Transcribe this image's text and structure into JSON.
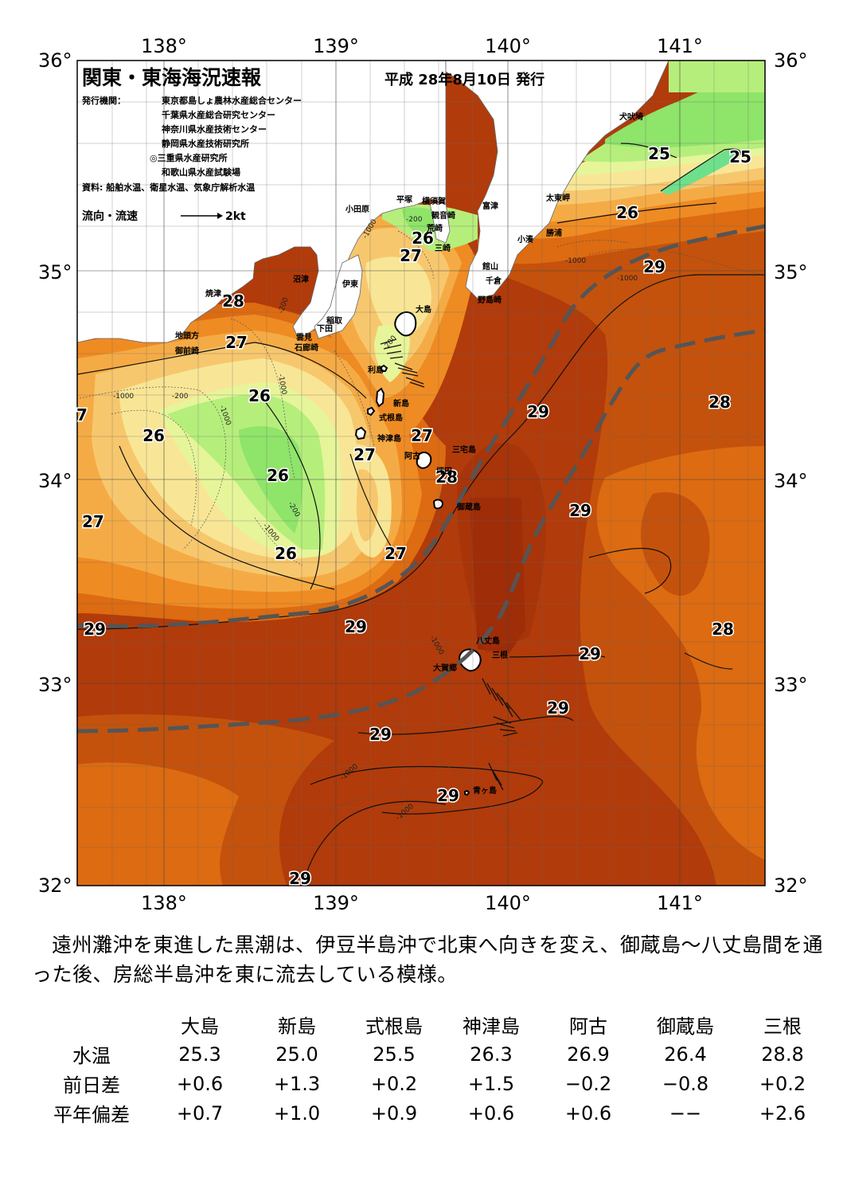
{
  "header": {
    "title": "関東・東海海況速報",
    "date": "平成 28年8月10日 発行",
    "publisher_label": "発行機関：",
    "publishers": [
      "東京都島しょ農林水産総合センター",
      "千葉県水産総合研究センター",
      "神奈川県水産技術センター",
      "静岡県水産技術研究所",
      "◎三重県水産研究所",
      "和歌山県水産試験場"
    ],
    "source": "資料: 船舶水温、衛星水温、気象庁解析水温",
    "legend_flow_label": "流向・流速",
    "legend_flow_scale": "2kt"
  },
  "map": {
    "lon_labels": [
      "138°",
      "139°",
      "140°",
      "141°"
    ],
    "lat_labels": [
      "36°",
      "35°",
      "34°",
      "33°",
      "32°"
    ],
    "lon_range": [
      137.5,
      141.5
    ],
    "lat_range": [
      32.0,
      36.0
    ],
    "temperature_labels": [
      "25",
      "25",
      "26",
      "29",
      "26",
      "27",
      "28",
      "27",
      "26",
      "26",
      "27",
      "27",
      "26",
      "27",
      "26",
      "27",
      "28",
      "29",
      "29",
      "28",
      "29",
      "29",
      "29",
      "28",
      "29",
      "29",
      "29",
      "29",
      "29",
      "7",
      "26"
    ],
    "depth_labels": [
      "-200",
      "-200",
      "-1000",
      "-200",
      "-1000",
      "-200",
      "-1000",
      "-1000",
      "-200",
      "-1000",
      "-1000",
      "-1000",
      "-1000",
      "-1000",
      "-1000"
    ],
    "places": [
      "犬吠埼",
      "太東岬",
      "勝浦",
      "小湊",
      "富津",
      "横須賀",
      "観音崎",
      "平塚",
      "荒崎",
      "三崎",
      "小田原",
      "館山",
      "千倉",
      "野島崎",
      "沼津",
      "伊東",
      "焼津",
      "稲取",
      "下田",
      "雲見",
      "石廊崎",
      "地頭方",
      "御前崎",
      "大島",
      "利島",
      "新島",
      "式根島",
      "神津島",
      "三宅島",
      "阿古",
      "坪田",
      "御蔵島",
      "八丈島",
      "三根",
      "大賀郷",
      "青ヶ島"
    ],
    "colors": {
      "t29plus": "#9b2a08",
      "t29": "#b13b0a",
      "t28": "#c4520c",
      "t27_5": "#dc6b12",
      "t27": "#ef8b23",
      "t26_5": "#f5ab45",
      "t26": "#f7c76e",
      "t25_5": "#f8e696",
      "t25": "#e6f59a",
      "t24_5": "#b6ee7c",
      "t24": "#8fe46a",
      "t23_5": "#6ee08c",
      "land": "#ffffff",
      "kuroshio_axis": "#555555"
    }
  },
  "summary": "遠州灘沖を東進した黒潮は、伊豆半島沖で北東へ向きを変え、御蔵島～八丈島間を通った後、房総半島沖を東に流去している模様。",
  "stats": {
    "columns": [
      "大島",
      "新島",
      "式根島",
      "神津島",
      "阿古",
      "御蔵島",
      "三根"
    ],
    "rows": [
      {
        "label": "水温",
        "values": [
          "25.3",
          "25.0",
          "25.5",
          "26.3",
          "26.9",
          "26.4",
          "28.8"
        ]
      },
      {
        "label": "前日差",
        "values": [
          "+0.6",
          "+1.3",
          "+0.2",
          "+1.5",
          "−0.2",
          "−0.8",
          "+0.2"
        ]
      },
      {
        "label": "平年偏差",
        "values": [
          "+0.7",
          "+1.0",
          "+0.9",
          "+0.6",
          "+0.6",
          "−−",
          "+2.6"
        ]
      }
    ]
  }
}
